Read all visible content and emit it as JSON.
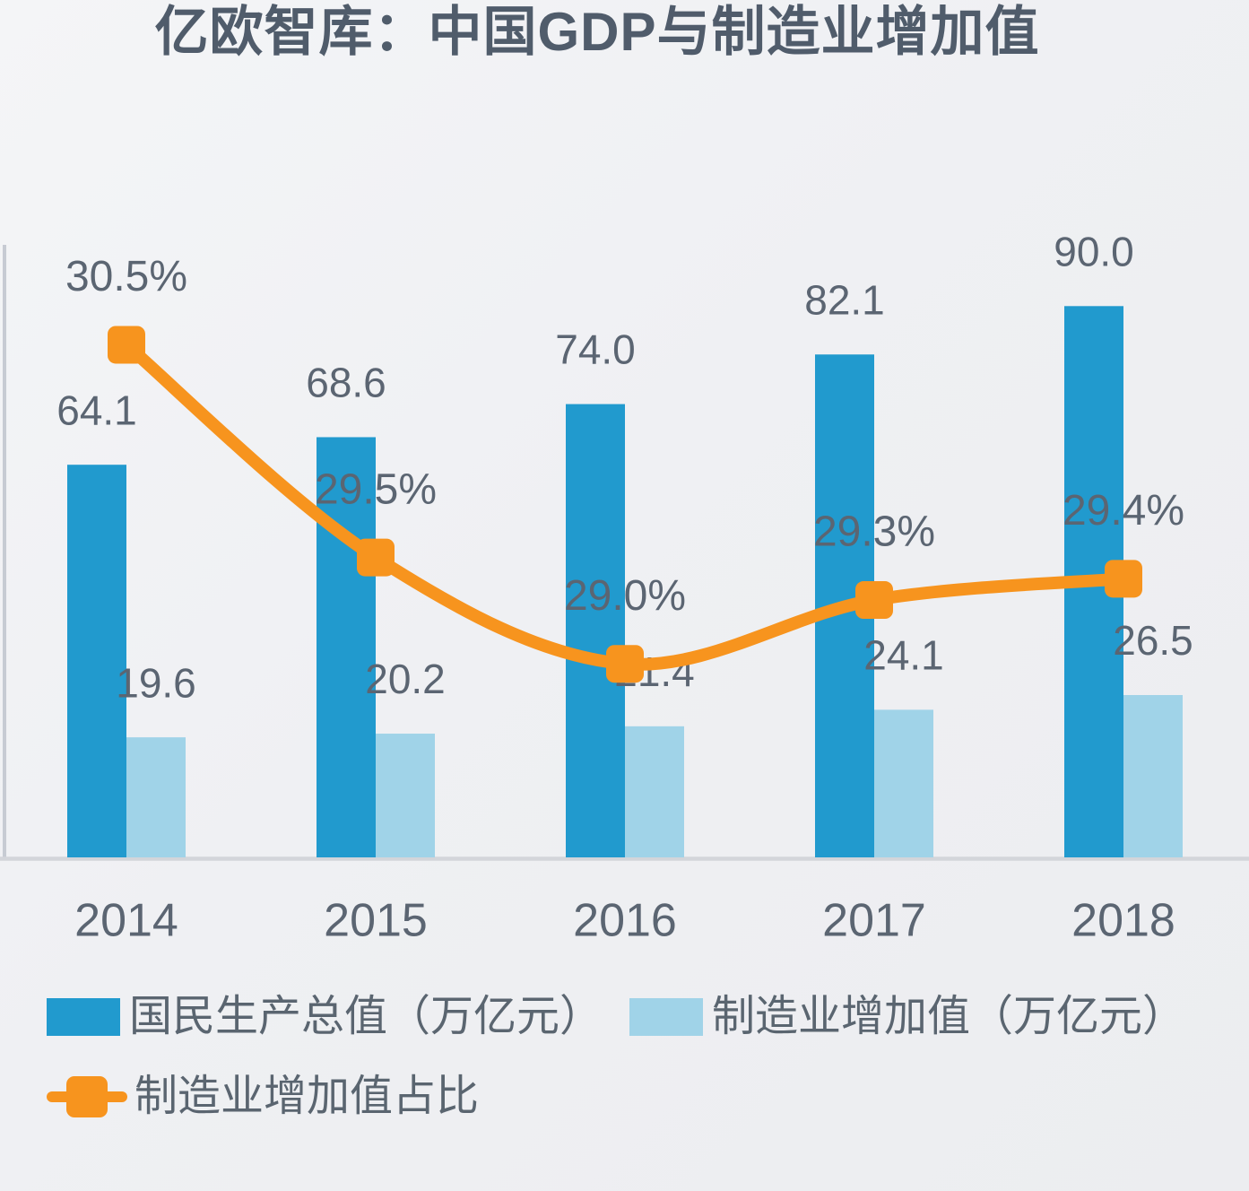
{
  "chart_data": {
    "type": "bar",
    "subtype": "grouped-bars-with-line-overlay",
    "title": "亿欧智库：中国GDP与制造业增加值",
    "categories": [
      "2014",
      "2015",
      "2016",
      "2017",
      "2018"
    ],
    "series": [
      {
        "name": "国民生产总值（万亿元）",
        "type": "bar",
        "axis": "left",
        "color": "#219ACE",
        "values": [
          64.1,
          68.6,
          74.0,
          82.1,
          90.0
        ],
        "labels": [
          "64.1",
          "68.6",
          "74.0",
          "82.1",
          "90.0"
        ]
      },
      {
        "name": "制造业增加值（万亿元）",
        "type": "bar",
        "axis": "left",
        "color": "#A0D3E8",
        "values": [
          19.6,
          20.2,
          21.4,
          24.1,
          26.5
        ],
        "labels": [
          "19.6",
          "20.2",
          "21.4",
          "24.1",
          "26.5"
        ]
      },
      {
        "name": "制造业增加值占比",
        "type": "line",
        "axis": "right",
        "color": "#F7941E",
        "marker": "rounded-square",
        "values": [
          30.5,
          29.5,
          29.0,
          29.3,
          29.4
        ],
        "labels": [
          "30.5%",
          "29.5%",
          "29.0%",
          "29.3%",
          "29.4%"
        ]
      }
    ],
    "left_axis": {
      "min": 0,
      "max": 100,
      "ticks_visible": false
    },
    "right_axis": {
      "min": 28.09,
      "max": 30.97,
      "ticks_visible": false
    },
    "grid": false,
    "legend_position": "bottom-left",
    "colors": {
      "title_text": "#505C6B",
      "label_text": "#5B6572",
      "axis_line": "#C7CBD3",
      "baseline": "#D3D5DA",
      "background": "#EFF0F3"
    }
  }
}
